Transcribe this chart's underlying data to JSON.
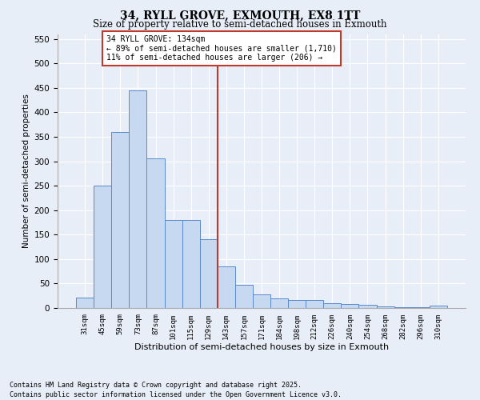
{
  "title": "34, RYLL GROVE, EXMOUTH, EX8 1TT",
  "subtitle": "Size of property relative to semi-detached houses in Exmouth",
  "xlabel": "Distribution of semi-detached houses by size in Exmouth",
  "ylabel": "Number of semi-detached properties",
  "footer_line1": "Contains HM Land Registry data © Crown copyright and database right 2025.",
  "footer_line2": "Contains public sector information licensed under the Open Government Licence v3.0.",
  "annotation_title": "34 RYLL GROVE: 134sqm",
  "annotation_line2": "← 89% of semi-detached houses are smaller (1,710)",
  "annotation_line3": "11% of semi-detached houses are larger (206) →",
  "categories": [
    "31sqm",
    "45sqm",
    "59sqm",
    "73sqm",
    "87sqm",
    "101sqm",
    "115sqm",
    "129sqm",
    "143sqm",
    "157sqm",
    "171sqm",
    "184sqm",
    "198sqm",
    "212sqm",
    "226sqm",
    "240sqm",
    "254sqm",
    "268sqm",
    "282sqm",
    "296sqm",
    "310sqm"
  ],
  "values": [
    22,
    250,
    360,
    445,
    305,
    180,
    180,
    140,
    85,
    47,
    28,
    20,
    17,
    17,
    9,
    8,
    6,
    4,
    2,
    1,
    5
  ],
  "bar_color": "#c6d9f0",
  "bar_edge_color": "#5b8ac9",
  "vline_color": "#c0392b",
  "annotation_box_edge": "#c0392b",
  "bg_color": "#e8eef8",
  "plot_bg_color": "#e8eef8",
  "grid_color": "#ffffff",
  "ylim": [
    0,
    560
  ],
  "yticks": [
    0,
    50,
    100,
    150,
    200,
    250,
    300,
    350,
    400,
    450,
    500,
    550
  ]
}
